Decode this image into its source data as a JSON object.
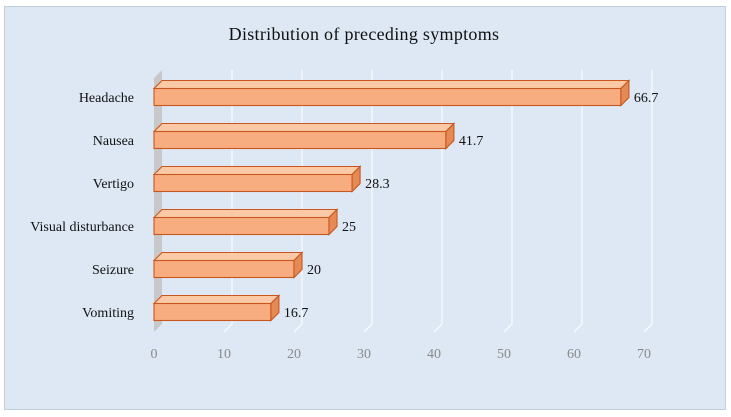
{
  "chart_data": {
    "type": "bar",
    "orientation": "horizontal",
    "style": "3d",
    "title": "Distribution of preceding symptoms",
    "categories": [
      "Headache",
      "Nausea",
      "Vertigo",
      "Visual disturbance",
      "Seizure",
      "Vomiting"
    ],
    "values": [
      66.7,
      41.7,
      28.3,
      25,
      20,
      16.7
    ],
    "value_labels": [
      "66.7",
      "41.7",
      "28.3",
      "25",
      "20",
      "16.7"
    ],
    "xlim": [
      0,
      70
    ],
    "xticks": [
      0,
      10,
      20,
      30,
      40,
      50,
      60,
      70
    ],
    "xlabel": "",
    "ylabel": "",
    "grid": true,
    "legend": false,
    "colors": {
      "bar_fill": "#f7ad80",
      "bar_top": "#fbc9a6",
      "bar_side": "#e58a55",
      "bar_edge": "#c8561e",
      "background": "#dde8f4",
      "wall": "#c8c8c8",
      "gridline": "#ffffff"
    }
  }
}
